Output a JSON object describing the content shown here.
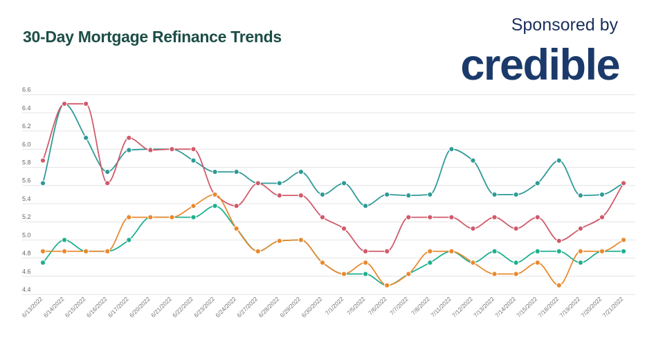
{
  "header": {
    "title": "30-Day Mortgage Refinance Trends",
    "sponsor_text": "Sponsored by",
    "sponsor_logo": "credible"
  },
  "colors": {
    "title": "#1d4d47",
    "sponsor": "#1b2f5e",
    "series": [
      "#2e9a96",
      "#d05a6a",
      "#e88a30",
      "#1fb08e"
    ]
  },
  "chart_data": {
    "type": "line",
    "title": "30-Day Mortgage Refinance Trends",
    "xlabel": "",
    "ylabel": "",
    "ylim": [
      4.4,
      6.6
    ],
    "yticks": [
      "4.4",
      "4.6",
      "4.8",
      "5.0",
      "5.2",
      "5.4",
      "5.6",
      "5.8",
      "6.0",
      "6.2",
      "6.4",
      "6.6"
    ],
    "grid": true,
    "legend": "none",
    "categories": [
      "6/13/2022",
      "6/14/2022",
      "6/15/2022",
      "6/16/2022",
      "6/17/2022",
      "6/20/2022",
      "6/21/2022",
      "6/22/2022",
      "6/23/2022",
      "6/24/2022",
      "6/27/2022",
      "6/28/2022",
      "6/29/2022",
      "6/30/2022",
      "7/1/2022",
      "7/5/2022",
      "7/6/2022",
      "7/7/2022",
      "7/8/2022",
      "7/11/2022",
      "7/12/2022",
      "7/13/2022",
      "7/14/2022",
      "7/15/2022",
      "7/18/2022",
      "7/19/2022",
      "7/20/2022",
      "7/21/2022"
    ],
    "series": [
      {
        "color": "#2e9a96",
        "values": [
          5.625,
          6.5,
          6.125,
          5.75,
          5.99,
          6.0,
          6.0,
          5.875,
          5.75,
          5.75,
          5.625,
          5.625,
          5.75,
          5.5,
          5.625,
          5.375,
          5.5,
          5.49,
          5.5,
          6.0,
          5.875,
          5.5,
          5.5,
          5.625,
          5.875,
          5.49,
          5.5,
          5.625
        ]
      },
      {
        "color": "#d05a6a",
        "values": [
          5.875,
          6.5,
          6.5,
          5.625,
          6.125,
          5.99,
          6.0,
          6.0,
          5.5,
          5.375,
          5.625,
          5.49,
          5.49,
          5.25,
          5.125,
          4.875,
          4.875,
          5.25,
          5.25,
          5.25,
          5.125,
          5.25,
          5.125,
          5.25,
          4.99,
          5.125,
          5.25,
          5.625
        ]
      },
      {
        "color": "#1fb08e",
        "values": [
          4.75,
          5.0,
          4.875,
          4.875,
          5.0,
          5.25,
          5.25,
          5.25,
          5.375,
          5.125,
          4.875,
          4.99,
          5.0,
          4.75,
          4.625,
          4.625,
          4.5,
          4.625,
          4.75,
          4.875,
          4.75,
          4.875,
          4.75,
          4.875,
          4.875,
          4.75,
          4.875,
          4.875
        ]
      },
      {
        "color": "#e88a30",
        "values": [
          4.875,
          4.875,
          4.875,
          4.875,
          5.25,
          5.25,
          5.25,
          5.375,
          5.5,
          5.125,
          4.875,
          4.99,
          5.0,
          4.75,
          4.625,
          4.75,
          4.5,
          4.625,
          4.875,
          4.875,
          4.75,
          4.625,
          4.625,
          4.75,
          4.5,
          4.875,
          4.875,
          5.0
        ]
      }
    ]
  }
}
